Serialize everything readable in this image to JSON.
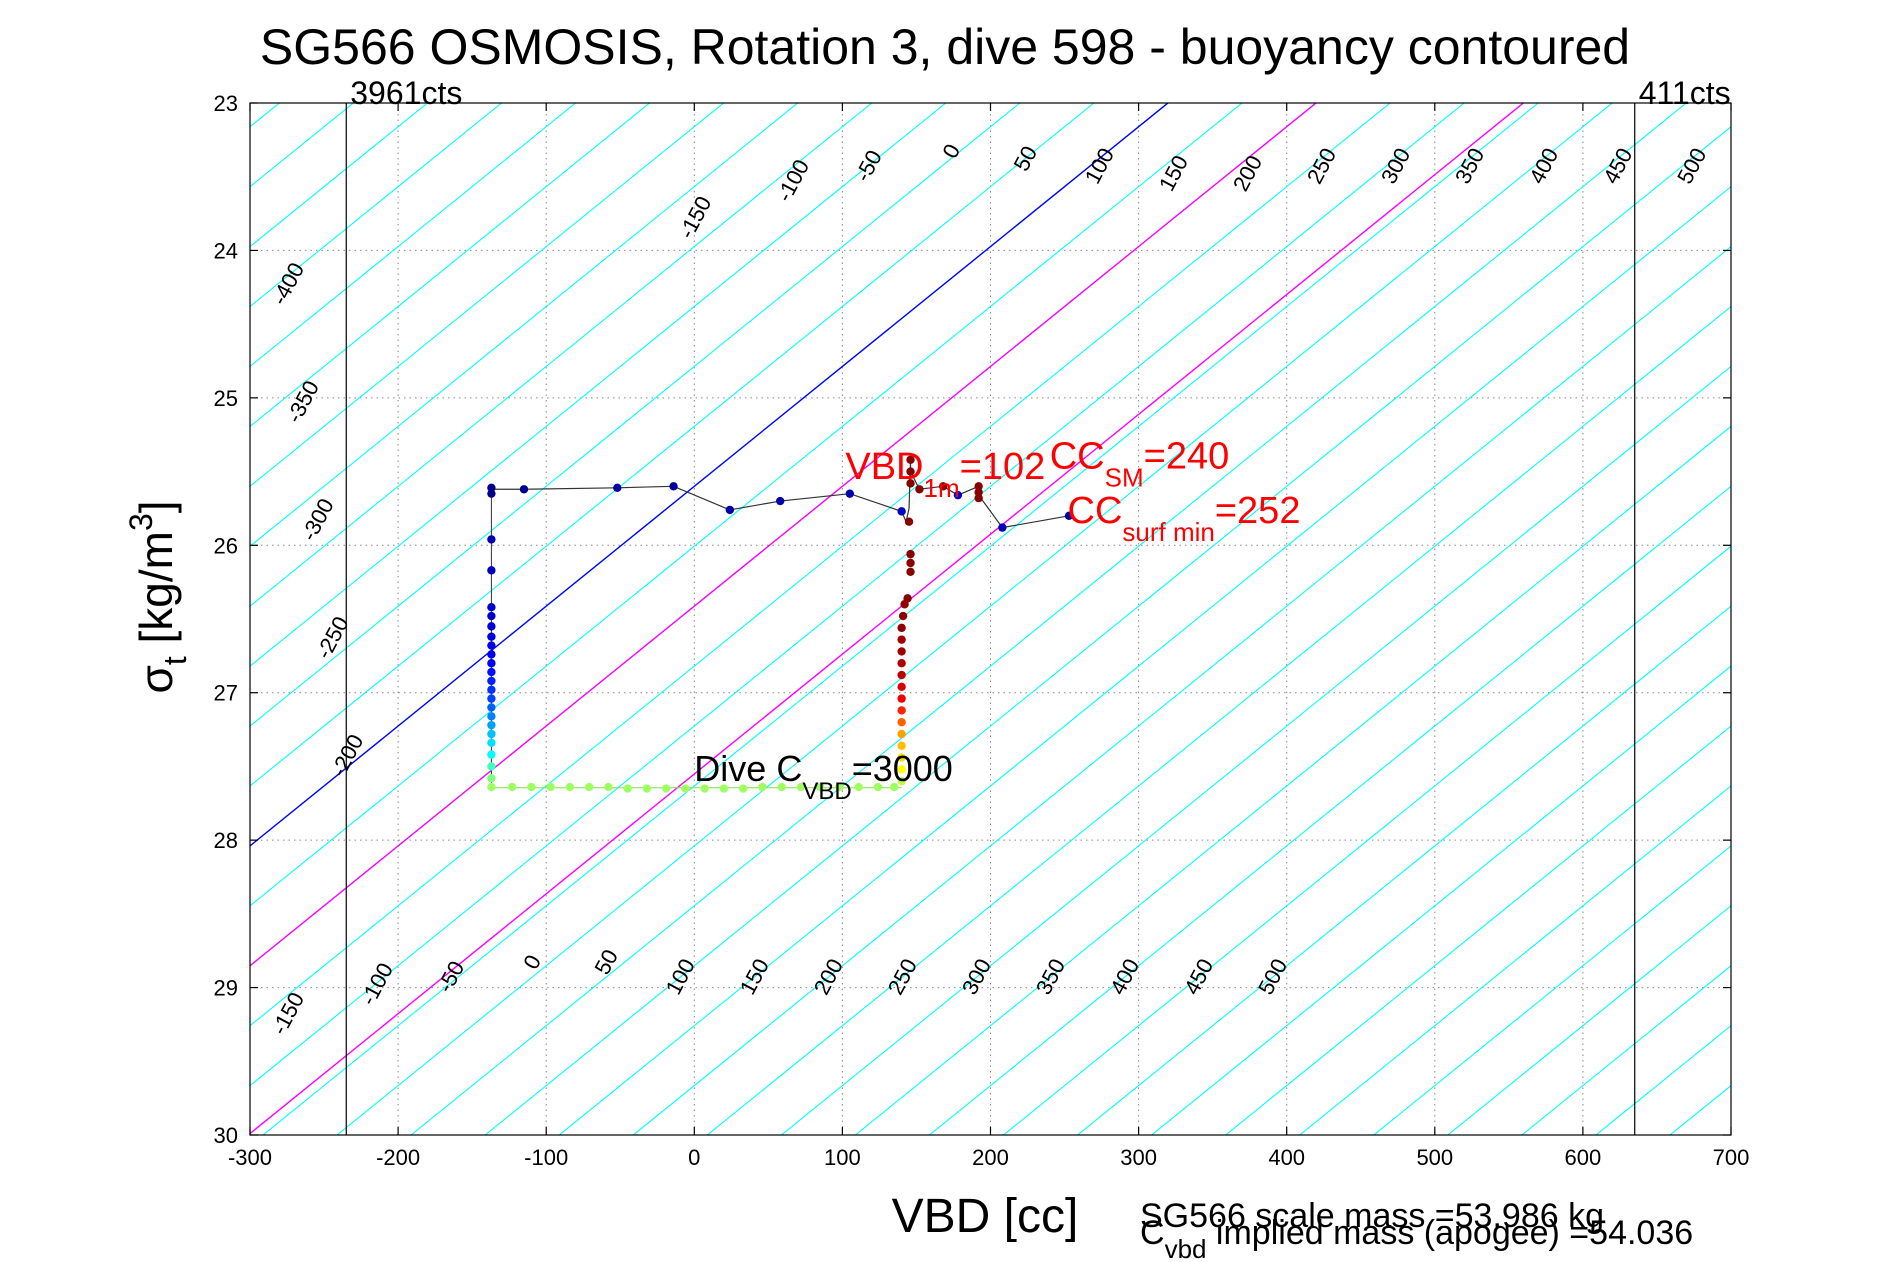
{
  "chart_data": {
    "type": "scatter",
    "title": "SG566 OSMOSIS, Rotation 3, dive 598 - buoyancy contoured",
    "xlabel": "VBD [cc]",
    "ylabel_main": "σ",
    "ylabel_sub": "t",
    "ylabel_unit_pre": " [kg/m",
    "ylabel_unit_sup": "3",
    "ylabel_unit_post": "]",
    "xlim": [
      -300,
      700
    ],
    "ylim": [
      23,
      30
    ],
    "y_reversed": true,
    "grid": true,
    "x_ticks": [
      -300,
      -200,
      -100,
      0,
      100,
      200,
      300,
      400,
      500,
      600,
      700
    ],
    "x_tick_labels": [
      "-300",
      "-200",
      "-100",
      "0",
      "100",
      "200",
      "300",
      "400",
      "500",
      "600",
      "700"
    ],
    "y_ticks": [
      23,
      24,
      25,
      26,
      27,
      28,
      29,
      30
    ],
    "y_tick_labels": [
      "23",
      "24",
      "25",
      "26",
      "27",
      "28",
      "29",
      "30"
    ],
    "vbd_limits": [
      {
        "x": -235,
        "label": "3961cts"
      },
      {
        "x": 635,
        "label": "411cts"
      }
    ],
    "contours": {
      "slope_cc_per_sigma": 123,
      "levels": [
        -400,
        -350,
        -300,
        -250,
        -200,
        -150,
        -100,
        -50,
        0,
        50,
        100,
        150,
        200,
        250,
        300,
        350,
        400,
        450,
        500
      ],
      "highlight": [
        {
          "level": 0,
          "color": "#0000ff"
        },
        {
          "level": 100,
          "color": "#ff00ff"
        },
        {
          "level": 240,
          "color": "#ff00ff"
        }
      ],
      "default_color": "#00ffff",
      "top_labels": [
        {
          "text": "-400",
          "x": -270,
          "y": 24.25
        },
        {
          "text": "-350",
          "x": -260,
          "y": 25.05
        },
        {
          "text": "-300",
          "x": -250,
          "y": 25.85
        },
        {
          "text": "-250",
          "x": -240,
          "y": 26.65
        },
        {
          "text": "-200",
          "x": -230,
          "y": 27.45
        },
        {
          "text": "-150",
          "x": 5,
          "y": 23.8
        },
        {
          "text": "-100",
          "x": 71,
          "y": 23.55
        },
        {
          "text": "-50",
          "x": 122,
          "y": 23.45
        },
        {
          "text": "0",
          "x": 178,
          "y": 23.35
        },
        {
          "text": "50",
          "x": 228,
          "y": 23.4
        },
        {
          "text": "100",
          "x": 278,
          "y": 23.45
        },
        {
          "text": "150",
          "x": 328,
          "y": 23.5
        },
        {
          "text": "200",
          "x": 378,
          "y": 23.5
        },
        {
          "text": "250",
          "x": 428,
          "y": 23.45
        },
        {
          "text": "300",
          "x": 478,
          "y": 23.45
        },
        {
          "text": "350",
          "x": 528,
          "y": 23.45
        },
        {
          "text": "400",
          "x": 578,
          "y": 23.45
        },
        {
          "text": "450",
          "x": 628,
          "y": 23.45
        },
        {
          "text": "500",
          "x": 678,
          "y": 23.45
        }
      ],
      "bottom_labels": [
        {
          "text": "-150",
          "x": -270,
          "y": 29.2
        },
        {
          "text": "-100",
          "x": -210,
          "y": 29.0
        },
        {
          "text": "-50",
          "x": -160,
          "y": 28.95
        },
        {
          "text": "0",
          "x": -105,
          "y": 28.85
        },
        {
          "text": "50",
          "x": -55,
          "y": 28.85
        },
        {
          "text": "100",
          "x": -5,
          "y": 28.95
        },
        {
          "text": "150",
          "x": 45,
          "y": 28.95
        },
        {
          "text": "200",
          "x": 95,
          "y": 28.95
        },
        {
          "text": "250",
          "x": 145,
          "y": 28.95
        },
        {
          "text": "300",
          "x": 195,
          "y": 28.95
        },
        {
          "text": "350",
          "x": 245,
          "y": 28.95
        },
        {
          "text": "400",
          "x": 295,
          "y": 28.95
        },
        {
          "text": "450",
          "x": 345,
          "y": 28.95
        },
        {
          "text": "500",
          "x": 395,
          "y": 28.95
        }
      ]
    },
    "dive_path": [
      [
        -137,
        25.62
      ],
      [
        -115,
        25.62
      ],
      [
        -52,
        25.61
      ],
      [
        -14,
        25.6
      ],
      [
        24,
        25.76
      ],
      [
        58,
        25.7
      ],
      [
        105,
        25.65
      ],
      [
        140,
        25.77
      ],
      [
        143,
        25.84
      ],
      [
        145,
        25.75
      ],
      [
        146,
        25.42
      ],
      [
        146,
        25.5
      ],
      [
        152,
        25.62
      ],
      [
        168,
        25.6
      ],
      [
        178,
        25.66
      ],
      [
        192,
        25.6
      ],
      [
        192,
        25.66
      ],
      [
        208,
        25.88
      ],
      [
        253,
        25.8
      ]
    ],
    "dive_points": [
      {
        "x": -137,
        "y": 25.61,
        "c": "#00008f"
      },
      {
        "x": -137,
        "y": 25.65,
        "c": "#00008f"
      },
      {
        "x": -115,
        "y": 25.62,
        "c": "#00008f"
      },
      {
        "x": -52,
        "y": 25.61,
        "c": "#00009f"
      },
      {
        "x": -14,
        "y": 25.6,
        "c": "#00009f"
      },
      {
        "x": 24,
        "y": 25.76,
        "c": "#0000a8"
      },
      {
        "x": 58,
        "y": 25.7,
        "c": "#0000a8"
      },
      {
        "x": 105,
        "y": 25.65,
        "c": "#0000af"
      },
      {
        "x": 140,
        "y": 25.77,
        "c": "#0000bf"
      },
      {
        "x": 178,
        "y": 25.66,
        "c": "#0000cf"
      },
      {
        "x": 208,
        "y": 25.88,
        "c": "#0000bf"
      },
      {
        "x": 253,
        "y": 25.8,
        "c": "#00009f"
      },
      {
        "x": -137,
        "y": 25.96,
        "c": "#0000af"
      },
      {
        "x": -137,
        "y": 26.17,
        "c": "#0000bf"
      },
      {
        "x": -137,
        "y": 26.42,
        "c": "#0000cf"
      },
      {
        "x": -137,
        "y": 26.48,
        "c": "#0000cf"
      },
      {
        "x": -137,
        "y": 26.55,
        "c": "#0000d8"
      },
      {
        "x": -137,
        "y": 26.62,
        "c": "#0000df"
      },
      {
        "x": -137,
        "y": 26.68,
        "c": "#0000e8"
      },
      {
        "x": -137,
        "y": 26.74,
        "c": "#0000ef"
      },
      {
        "x": -137,
        "y": 26.8,
        "c": "#0000ff"
      },
      {
        "x": -137,
        "y": 26.86,
        "c": "#0010ff"
      },
      {
        "x": -137,
        "y": 26.92,
        "c": "#0020ff"
      },
      {
        "x": -137,
        "y": 26.98,
        "c": "#0030ff"
      },
      {
        "x": -137,
        "y": 27.04,
        "c": "#0040ff"
      },
      {
        "x": -137,
        "y": 27.1,
        "c": "#0060ff"
      },
      {
        "x": -137,
        "y": 27.16,
        "c": "#0080ff"
      },
      {
        "x": -137,
        "y": 27.22,
        "c": "#00a0ff"
      },
      {
        "x": -137,
        "y": 27.28,
        "c": "#00c0ff"
      },
      {
        "x": -137,
        "y": 27.34,
        "c": "#00e0ff"
      },
      {
        "x": -137,
        "y": 27.42,
        "c": "#00ffff"
      },
      {
        "x": -137,
        "y": 27.5,
        "c": "#40ffbf"
      },
      {
        "x": -137,
        "y": 27.58,
        "c": "#7fff80"
      },
      {
        "x": -137,
        "y": 27.64,
        "c": "#9fff60"
      },
      {
        "x": -123,
        "y": 27.64,
        "c": "#9fff60"
      },
      {
        "x": -110,
        "y": 27.64,
        "c": "#9fff60"
      },
      {
        "x": -97,
        "y": 27.64,
        "c": "#9fff60"
      },
      {
        "x": -84,
        "y": 27.64,
        "c": "#9fff60"
      },
      {
        "x": -71,
        "y": 27.64,
        "c": "#9fff60"
      },
      {
        "x": -58,
        "y": 27.64,
        "c": "#9fff60"
      },
      {
        "x": -45,
        "y": 27.65,
        "c": "#9fff60"
      },
      {
        "x": -32,
        "y": 27.65,
        "c": "#9fff60"
      },
      {
        "x": -19,
        "y": 27.65,
        "c": "#9fff60"
      },
      {
        "x": -6,
        "y": 27.65,
        "c": "#9fff60"
      },
      {
        "x": 7,
        "y": 27.65,
        "c": "#9fff60"
      },
      {
        "x": 20,
        "y": 27.65,
        "c": "#9fff60"
      },
      {
        "x": 33,
        "y": 27.65,
        "c": "#9fff60"
      },
      {
        "x": 46,
        "y": 27.64,
        "c": "#9fff60"
      },
      {
        "x": 59,
        "y": 27.64,
        "c": "#9fff60"
      },
      {
        "x": 72,
        "y": 27.64,
        "c": "#9fff60"
      },
      {
        "x": 85,
        "y": 27.64,
        "c": "#9fff60"
      },
      {
        "x": 98,
        "y": 27.64,
        "c": "#9fff60"
      },
      {
        "x": 111,
        "y": 27.64,
        "c": "#9fff60"
      },
      {
        "x": 124,
        "y": 27.64,
        "c": "#9fff60"
      },
      {
        "x": 135,
        "y": 27.64,
        "c": "#9fff60"
      },
      {
        "x": 140,
        "y": 27.6,
        "c": "#bfff40"
      },
      {
        "x": 140,
        "y": 27.52,
        "c": "#ffff00"
      },
      {
        "x": 140,
        "y": 27.44,
        "c": "#ffdf00"
      },
      {
        "x": 140,
        "y": 27.36,
        "c": "#ffbf00"
      },
      {
        "x": 140,
        "y": 27.28,
        "c": "#ff9f00"
      },
      {
        "x": 140,
        "y": 27.2,
        "c": "#ff6000"
      },
      {
        "x": 140,
        "y": 27.12,
        "c": "#ff2000"
      },
      {
        "x": 140,
        "y": 27.04,
        "c": "#ef0000"
      },
      {
        "x": 140,
        "y": 26.96,
        "c": "#d80000"
      },
      {
        "x": 140,
        "y": 26.88,
        "c": "#bf0000"
      },
      {
        "x": 140,
        "y": 26.8,
        "c": "#af0000"
      },
      {
        "x": 140,
        "y": 26.72,
        "c": "#a00000"
      },
      {
        "x": 140,
        "y": 26.64,
        "c": "#a00000"
      },
      {
        "x": 140,
        "y": 26.56,
        "c": "#900000"
      },
      {
        "x": 141,
        "y": 26.48,
        "c": "#900000"
      },
      {
        "x": 142,
        "y": 26.4,
        "c": "#900000"
      },
      {
        "x": 144,
        "y": 26.36,
        "c": "#880000"
      },
      {
        "x": 146,
        "y": 26.18,
        "c": "#880000"
      },
      {
        "x": 146,
        "y": 26.12,
        "c": "#880000"
      },
      {
        "x": 146,
        "y": 26.06,
        "c": "#880000"
      },
      {
        "x": 145,
        "y": 25.84,
        "c": "#880000"
      },
      {
        "x": 146,
        "y": 25.42,
        "c": "#880000"
      },
      {
        "x": 146,
        "y": 25.5,
        "c": "#880000"
      },
      {
        "x": 146,
        "y": 25.58,
        "c": "#880000"
      },
      {
        "x": 152,
        "y": 25.62,
        "c": "#880000"
      },
      {
        "x": 168,
        "y": 25.6,
        "c": "#880000"
      },
      {
        "x": 192,
        "y": 25.6,
        "c": "#880000"
      },
      {
        "x": 192,
        "y": 25.64,
        "c": "#880000"
      },
      {
        "x": 192,
        "y": 25.68,
        "c": "#880000"
      }
    ],
    "annotations": [
      {
        "id": "vbd-1m",
        "main": "VBD",
        "sub": "1m",
        "value": "=102",
        "x": 102,
        "y": 25.55,
        "color": "#ff0000"
      },
      {
        "id": "cc-sm",
        "main": "CC",
        "sub": "SM",
        "value": "=240",
        "x": 240,
        "y": 25.48,
        "color": "#ff0000"
      },
      {
        "id": "cc-surf-min",
        "main": "CC",
        "sub": "surf min",
        "value": "=252",
        "x": 252,
        "y": 25.85,
        "color": "#ff0000"
      },
      {
        "id": "dive-cvbd",
        "main": "Dive C",
        "sub": "VBD",
        "value": "=3000",
        "x": 0,
        "y": 27.6,
        "color": "#000000"
      }
    ],
    "footer_lines": [
      {
        "main": "SG566 scale mass =53.986 kg",
        "sub": ""
      },
      {
        "main": "C",
        "sub": "vbd",
        "rest": " implied mass (apogee) =54.036"
      }
    ]
  }
}
